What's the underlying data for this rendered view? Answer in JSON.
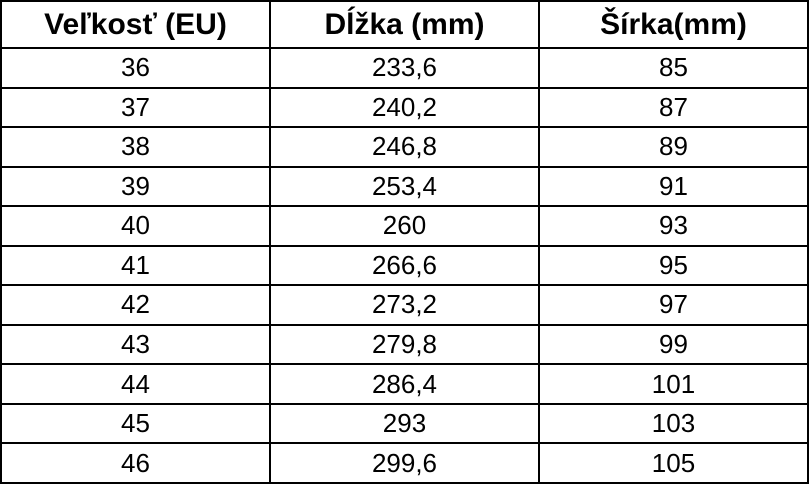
{
  "table": {
    "name": "shoe-size-chart",
    "headers": {
      "size": "Veľkosť (EU)",
      "length": "Dĺžka (mm)",
      "width": "Šírka(mm)"
    },
    "rows": [
      [
        "36",
        "233,6",
        "85"
      ],
      [
        "37",
        "240,2",
        "87"
      ],
      [
        "38",
        "246,8",
        "89"
      ],
      [
        "39",
        "253,4",
        "91"
      ],
      [
        "40",
        "260",
        "93"
      ],
      [
        "41",
        "266,6",
        "95"
      ],
      [
        "42",
        "273,2",
        "97"
      ],
      [
        "43",
        "279,8",
        "99"
      ],
      [
        "44",
        "286,4",
        "101"
      ],
      [
        "45",
        "293",
        "103"
      ],
      [
        "46",
        "299,6",
        "105"
      ]
    ]
  },
  "colors": {
    "border": "#000000",
    "text": "#000000",
    "background": "#ffffff"
  }
}
